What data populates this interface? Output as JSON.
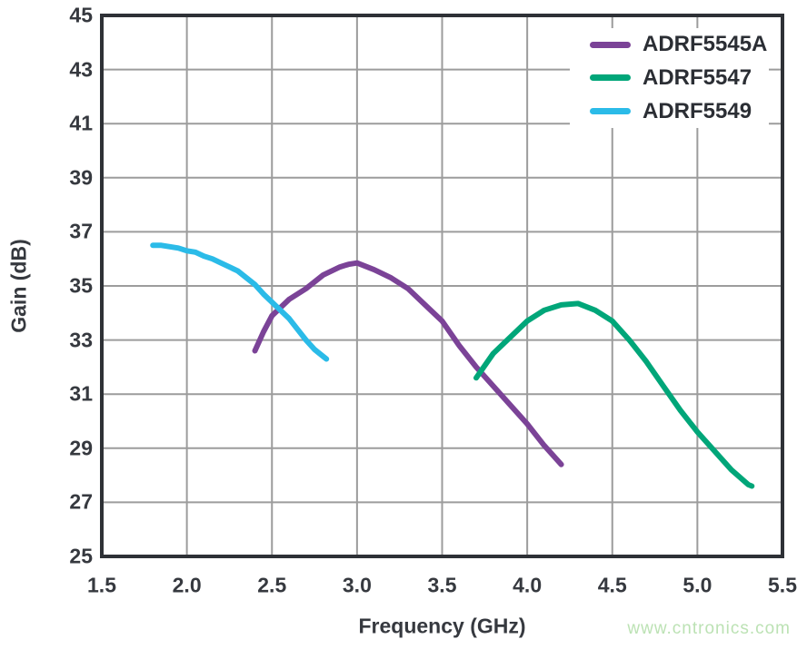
{
  "watermark": {
    "text": "www.cntronics.com",
    "color": "#BCE2B4"
  },
  "colors": {
    "background": "#FFFFFF",
    "grid": "#9C9C9C",
    "frame": "#2E3136",
    "text": "#36393F"
  },
  "chart_data": {
    "type": "line",
    "title": "",
    "xlabel": "Frequency (GHz)",
    "ylabel": "Gain (dB)",
    "xlim": [
      1.5,
      5.5
    ],
    "ylim": [
      25,
      45
    ],
    "grid": true,
    "legend_position": "top-right",
    "x_ticks": {
      "values": [
        1.5,
        2.0,
        2.5,
        3.0,
        3.5,
        4.0,
        4.5,
        5.0,
        5.5
      ],
      "labels": [
        "1.5",
        "2.0",
        "2.5",
        "3.0",
        "3.5",
        "4.0",
        "4.5",
        "5.0",
        "5.5"
      ]
    },
    "y_ticks": {
      "values": [
        25,
        27,
        29,
        31,
        33,
        35,
        37,
        39,
        41,
        43,
        45
      ],
      "labels": [
        "25",
        "27",
        "29",
        "31",
        "33",
        "35",
        "37",
        "39",
        "41",
        "43",
        "45"
      ]
    },
    "series": [
      {
        "name": "ADRF5545A",
        "color": "#7B4397",
        "x": [
          2.4,
          2.45,
          2.5,
          2.6,
          2.7,
          2.8,
          2.9,
          2.95,
          3.0,
          3.1,
          3.2,
          3.3,
          3.4,
          3.5,
          3.6,
          3.7,
          3.8,
          3.9,
          4.0,
          4.1,
          4.2
        ],
        "y": [
          32.6,
          33.3,
          33.9,
          34.5,
          34.9,
          35.4,
          35.7,
          35.8,
          35.85,
          35.6,
          35.3,
          34.9,
          34.3,
          33.7,
          32.8,
          32.0,
          31.3,
          30.6,
          29.9,
          29.1,
          28.4
        ]
      },
      {
        "name": "ADRF5547",
        "color": "#00A679",
        "x": [
          3.7,
          3.8,
          3.9,
          4.0,
          4.1,
          4.2,
          4.3,
          4.4,
          4.5,
          4.6,
          4.7,
          4.8,
          4.9,
          5.0,
          5.1,
          5.2,
          5.3,
          5.32
        ],
        "y": [
          31.6,
          32.5,
          33.1,
          33.7,
          34.1,
          34.3,
          34.35,
          34.1,
          33.7,
          33.0,
          32.2,
          31.3,
          30.4,
          29.6,
          28.9,
          28.2,
          27.65,
          27.6
        ]
      },
      {
        "name": "ADRF5549",
        "color": "#2BBBE8",
        "x": [
          1.8,
          1.85,
          1.9,
          1.95,
          2.0,
          2.05,
          2.1,
          2.15,
          2.2,
          2.25,
          2.3,
          2.35,
          2.4,
          2.45,
          2.5,
          2.55,
          2.6,
          2.65,
          2.7,
          2.75,
          2.8,
          2.82
        ],
        "y": [
          36.5,
          36.5,
          36.45,
          36.4,
          36.3,
          36.25,
          36.1,
          36.0,
          35.85,
          35.7,
          35.55,
          35.3,
          35.05,
          34.7,
          34.4,
          34.1,
          33.8,
          33.4,
          33.0,
          32.65,
          32.4,
          32.3
        ]
      }
    ]
  }
}
